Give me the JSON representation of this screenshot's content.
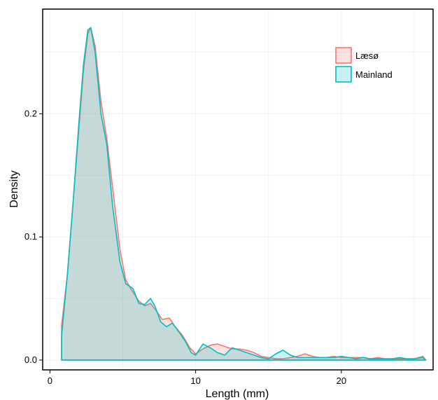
{
  "chart_data": {
    "type": "area",
    "xlabel": "Length (mm)",
    "ylabel": "Density",
    "xlim": [
      -0.5,
      26.3
    ],
    "ylim": [
      -0.008,
      0.285
    ],
    "x_ticks": [
      0,
      10,
      20
    ],
    "x_tick_labels": [
      "0",
      "10",
      "20"
    ],
    "y_ticks": [
      0.0,
      0.1,
      0.2
    ],
    "y_tick_labels": [
      "0.0",
      "0.1",
      "0.2"
    ],
    "grid": true,
    "legend_position": "top-right",
    "series": [
      {
        "name": "Læsø",
        "stroke": "#F8766D",
        "fill": "#F8766D",
        "points": [
          [
            0.8,
            0.0
          ],
          [
            0.8,
            0.028
          ],
          [
            1.2,
            0.07
          ],
          [
            1.6,
            0.13
          ],
          [
            2.0,
            0.19
          ],
          [
            2.3,
            0.235
          ],
          [
            2.6,
            0.265
          ],
          [
            2.8,
            0.27
          ],
          [
            3.1,
            0.255
          ],
          [
            3.5,
            0.21
          ],
          [
            3.9,
            0.18
          ],
          [
            4.3,
            0.14
          ],
          [
            4.8,
            0.09
          ],
          [
            5.2,
            0.065
          ],
          [
            5.7,
            0.055
          ],
          [
            6.1,
            0.048
          ],
          [
            6.5,
            0.044
          ],
          [
            6.9,
            0.046
          ],
          [
            7.3,
            0.04
          ],
          [
            7.7,
            0.033
          ],
          [
            8.2,
            0.034
          ],
          [
            8.6,
            0.027
          ],
          [
            9.1,
            0.02
          ],
          [
            9.6,
            0.01
          ],
          [
            10.0,
            0.005
          ],
          [
            10.5,
            0.009
          ],
          [
            11.0,
            0.012
          ],
          [
            11.5,
            0.013
          ],
          [
            12.0,
            0.011
          ],
          [
            12.5,
            0.009
          ],
          [
            13.0,
            0.009
          ],
          [
            13.5,
            0.008
          ],
          [
            14.0,
            0.006
          ],
          [
            14.5,
            0.003
          ],
          [
            15.0,
            0.002
          ],
          [
            15.5,
            0.001
          ],
          [
            16.0,
            0.001
          ],
          [
            16.5,
            0.002
          ],
          [
            17.0,
            0.003
          ],
          [
            17.5,
            0.005
          ],
          [
            18.0,
            0.003
          ],
          [
            18.5,
            0.002
          ],
          [
            19.0,
            0.002
          ],
          [
            19.5,
            0.003
          ],
          [
            20.0,
            0.002
          ],
          [
            20.5,
            0.002
          ],
          [
            21.0,
            0.002
          ],
          [
            21.5,
            0.002
          ],
          [
            22.0,
            0.001
          ],
          [
            22.5,
            0.002
          ],
          [
            23.0,
            0.001
          ],
          [
            23.5,
            0.001
          ],
          [
            24.0,
            0.001
          ],
          [
            24.5,
            0.001
          ],
          [
            25.0,
            0.001
          ],
          [
            25.6,
            0.003
          ],
          [
            25.8,
            0.0
          ]
        ]
      },
      {
        "name": "Mainland",
        "stroke": "#00BFC4",
        "fill": "#00BFC4",
        "points": [
          [
            0.8,
            0.0
          ],
          [
            0.8,
            0.02
          ],
          [
            1.2,
            0.07
          ],
          [
            1.6,
            0.13
          ],
          [
            2.0,
            0.195
          ],
          [
            2.3,
            0.24
          ],
          [
            2.6,
            0.268
          ],
          [
            2.8,
            0.27
          ],
          [
            3.1,
            0.25
          ],
          [
            3.5,
            0.2
          ],
          [
            3.9,
            0.175
          ],
          [
            4.3,
            0.125
          ],
          [
            4.8,
            0.08
          ],
          [
            5.2,
            0.062
          ],
          [
            5.7,
            0.058
          ],
          [
            6.1,
            0.046
          ],
          [
            6.5,
            0.045
          ],
          [
            6.9,
            0.05
          ],
          [
            7.2,
            0.044
          ],
          [
            7.6,
            0.031
          ],
          [
            8.0,
            0.027
          ],
          [
            8.4,
            0.03
          ],
          [
            8.9,
            0.022
          ],
          [
            9.3,
            0.015
          ],
          [
            9.7,
            0.006
          ],
          [
            10.0,
            0.004
          ],
          [
            10.5,
            0.013
          ],
          [
            11.0,
            0.01
          ],
          [
            11.5,
            0.006
          ],
          [
            12.0,
            0.004
          ],
          [
            12.5,
            0.01
          ],
          [
            13.0,
            0.008
          ],
          [
            13.5,
            0.006
          ],
          [
            14.0,
            0.004
          ],
          [
            14.5,
            0.002
          ],
          [
            15.0,
            0.001
          ],
          [
            15.5,
            0.005
          ],
          [
            16.0,
            0.008
          ],
          [
            16.5,
            0.004
          ],
          [
            17.0,
            0.002
          ],
          [
            17.5,
            0.002
          ],
          [
            18.0,
            0.002
          ],
          [
            18.5,
            0.002
          ],
          [
            19.0,
            0.002
          ],
          [
            19.5,
            0.002
          ],
          [
            20.0,
            0.003
          ],
          [
            20.5,
            0.002
          ],
          [
            21.0,
            0.001
          ],
          [
            21.5,
            0.002
          ],
          [
            22.0,
            0.001
          ],
          [
            22.5,
            0.001
          ],
          [
            23.0,
            0.001
          ],
          [
            23.5,
            0.001
          ],
          [
            24.0,
            0.002
          ],
          [
            24.5,
            0.001
          ],
          [
            25.0,
            0.001
          ],
          [
            25.6,
            0.002
          ],
          [
            25.8,
            0.0
          ]
        ]
      }
    ]
  }
}
